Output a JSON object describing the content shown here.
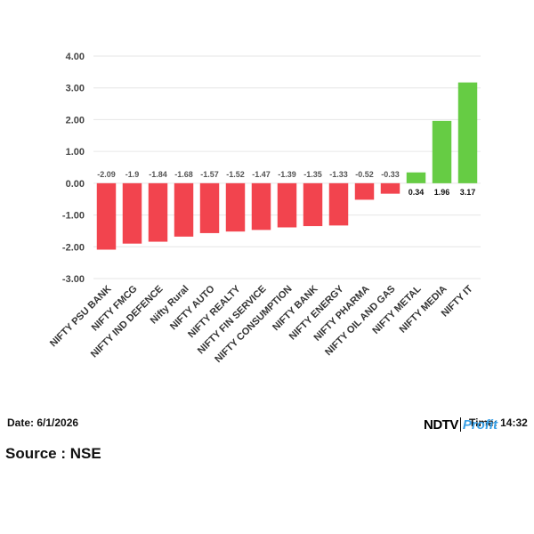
{
  "chart_data": {
    "type": "bar",
    "categories": [
      "NIFTY PSU BANK",
      "NIFTY FMCG",
      "NIFTY IND DEFENCE",
      "Nifty Rural",
      "NIFTY AUTO",
      "NIFTY REALTY",
      "NIFTY FIN SERVICE",
      "NIFTY CONSUMPTION",
      "NIFTY BANK",
      "NIFTY ENERGY",
      "NIFTY PHARMA",
      "NIFTY OIL AND GAS",
      "NIFTY METAL",
      "NIFTY MEDIA",
      "NIFTY IT"
    ],
    "values": [
      -2.09,
      -1.9,
      -1.84,
      -1.68,
      -1.57,
      -1.52,
      -1.47,
      -1.39,
      -1.35,
      -1.33,
      -0.52,
      -0.33,
      0.34,
      1.96,
      3.17
    ],
    "data_labels": [
      "-2.09",
      "-1.9",
      "-1.84",
      "-1.68",
      "-1.57",
      "-1.52",
      "-1.47",
      "-1.39",
      "-1.35",
      "-1.33",
      "-0.52",
      "-0.33",
      "0.34",
      "1.96",
      "3.17"
    ],
    "y_ticks": [
      "4.00",
      "3.00",
      "2.00",
      "1.00",
      "0.00",
      "-1.00",
      "-2.00",
      "-3.00"
    ],
    "ylim": [
      -3,
      4
    ],
    "grid": true,
    "title": "",
    "xlabel": "",
    "ylabel": "",
    "colors": {
      "positive": "#66cc44",
      "negative": "#f2444e",
      "grid": "#e6e6e6"
    }
  },
  "footer": {
    "date": "Date: 6/1/2026",
    "time": "Time: 14:32",
    "source": "Source : NSE"
  },
  "brand": {
    "ndtv": "NDTV",
    "profit": "Profit",
    "profit_color": "#3aa0e6"
  }
}
